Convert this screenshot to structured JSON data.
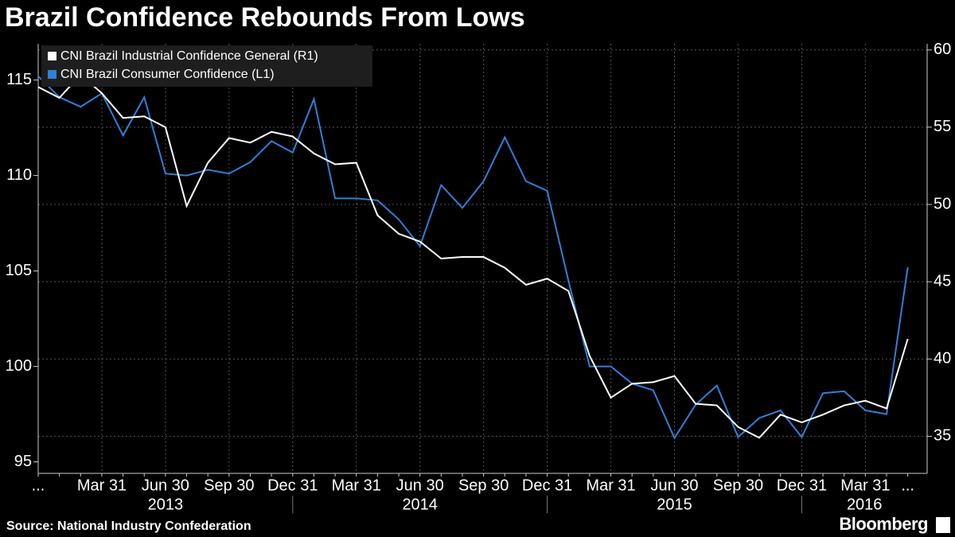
{
  "chart_data": {
    "type": "line",
    "title": "Brazil Confidence Rebounds From Lows",
    "source": "Source: National Industry Confederation",
    "brand": "Bloomberg",
    "categories": [
      "...",
      null,
      null,
      "Mar 31",
      null,
      null,
      "Jun 30",
      null,
      null,
      "Sep 30",
      null,
      null,
      "Dec 31",
      null,
      null,
      "Mar 31",
      null,
      null,
      "Jun 30",
      null,
      null,
      "Sep 30",
      null,
      null,
      "Dec 31",
      null,
      null,
      "Mar 31",
      null,
      null,
      "Jun 30",
      null,
      null,
      "Sep 30",
      null,
      null,
      "Dec 31",
      null,
      null,
      "Mar 31",
      null,
      "..."
    ],
    "year_labels": [
      "2013",
      "2014",
      "2015",
      "2016"
    ],
    "series": [
      {
        "name": "CNI Brazil Industrial Confidence General  (R1)",
        "color": "#ffffff",
        "axis": "y2",
        "values": [
          57.6,
          56.9,
          58.4,
          57.2,
          55.6,
          55.7,
          55.0,
          49.9,
          52.7,
          54.3,
          54.0,
          54.7,
          54.4,
          53.3,
          52.6,
          52.7,
          49.3,
          48.1,
          47.6,
          46.5,
          46.6,
          46.6,
          45.9,
          44.8,
          45.2,
          44.4,
          40.2,
          37.5,
          38.4,
          38.5,
          38.9,
          37.1,
          37.0,
          35.6,
          34.9,
          36.4,
          35.9,
          36.4,
          37.0,
          37.3,
          36.8,
          41.3
        ]
      },
      {
        "name": "CNI Brazil Consumer Confidence  (L1)",
        "color": "#2f80d8",
        "axis": "y",
        "values": [
          115.2,
          114.1,
          113.6,
          114.3,
          112.1,
          114.1,
          110.1,
          110.0,
          110.3,
          110.1,
          110.7,
          111.8,
          111.2,
          114.0,
          108.8,
          108.8,
          108.7,
          107.7,
          106.3,
          109.5,
          108.3,
          109.7,
          112.0,
          109.7,
          109.2,
          104.5,
          100.0,
          100.0,
          99.1,
          98.75,
          96.25,
          98.0,
          99.0,
          96.3,
          97.3,
          97.7,
          96.3,
          98.6,
          98.7,
          97.7,
          97.5,
          105.2
        ]
      }
    ],
    "ylim": [
      94.4,
      116.9
    ],
    "yticks": [
      95,
      100,
      105,
      110,
      115
    ],
    "y2lim": [
      32.6,
      60.4
    ],
    "y2ticks": [
      35,
      40,
      45,
      50,
      55,
      60
    ],
    "grid": true,
    "legend": "top-left"
  }
}
